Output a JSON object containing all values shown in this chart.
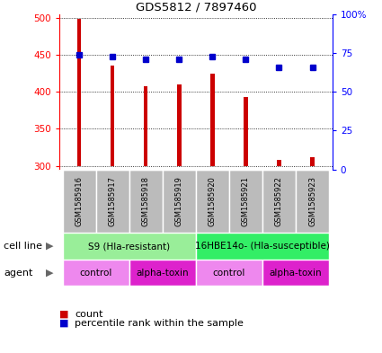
{
  "title": "GDS5812 / 7897460",
  "samples": [
    "GSM1585916",
    "GSM1585917",
    "GSM1585918",
    "GSM1585919",
    "GSM1585920",
    "GSM1585921",
    "GSM1585922",
    "GSM1585923"
  ],
  "counts": [
    498,
    435,
    408,
    410,
    424,
    393,
    308,
    312
  ],
  "percentile_ranks": [
    73,
    72,
    70,
    70,
    72,
    70,
    65,
    65
  ],
  "ymin": 295,
  "ymax": 505,
  "yticks": [
    300,
    350,
    400,
    450,
    500
  ],
  "y2ticks": [
    0,
    25,
    50,
    75,
    100
  ],
  "y2tick_labels": [
    "0",
    "25",
    "50",
    "75",
    "100%"
  ],
  "bar_color": "#cc0000",
  "dot_color": "#0000cc",
  "bar_bottom": 300,
  "bar_width": 0.12,
  "cell_lines": [
    {
      "label": "S9 (Hla-resistant)",
      "start": 0,
      "end": 4,
      "color": "#99ee99"
    },
    {
      "label": "16HBE14o- (Hla-susceptible)",
      "start": 4,
      "end": 8,
      "color": "#33ee66"
    }
  ],
  "agents": [
    {
      "label": "control",
      "start": 0,
      "end": 2,
      "color": "#ee88ee"
    },
    {
      "label": "alpha-toxin",
      "start": 2,
      "end": 4,
      "color": "#dd22cc"
    },
    {
      "label": "control",
      "start": 4,
      "end": 6,
      "color": "#ee88ee"
    },
    {
      "label": "alpha-toxin",
      "start": 6,
      "end": 8,
      "color": "#dd22cc"
    }
  ],
  "legend_count_color": "#cc0000",
  "legend_dot_color": "#0000cc",
  "sample_box_color": "#bbbbbb",
  "cell_line_label": "cell line",
  "agent_label": "agent",
  "bg_color": "#ffffff"
}
